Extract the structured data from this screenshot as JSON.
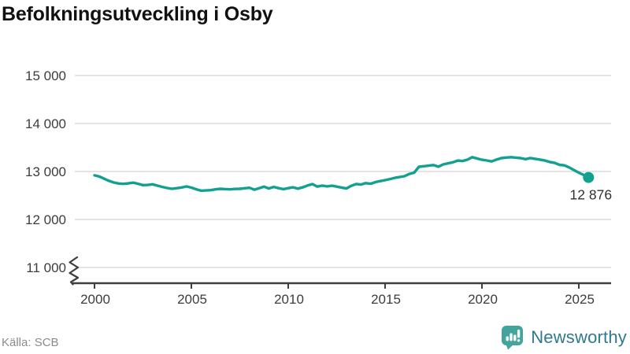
{
  "header": {
    "title": "Befolkningsutveckling i Osby"
  },
  "footer": {
    "source": "Källa: SCB",
    "brand": "Newsworthy"
  },
  "colors": {
    "line": "#12A091",
    "grid": "#E4E4E4",
    "axis": "#3E3E3E",
    "tick_text": "#3C3C3C",
    "title_text": "#111111",
    "source_text": "#8C8C8C",
    "logo_icon": "#43A49B",
    "logo_text": "#2F7A8C",
    "end_label_text": "#303030"
  },
  "chart_data": {
    "type": "line",
    "title": "Befolkningsutveckling i Osby",
    "xlabel": "",
    "ylabel": "",
    "x_range": [
      2000,
      2025.5
    ],
    "ylim": [
      11000,
      15000
    ],
    "axis_break": true,
    "grid": true,
    "legend": "none",
    "y_ticks": [
      {
        "v": 15000,
        "label": "15 000"
      },
      {
        "v": 14000,
        "label": "14 000"
      },
      {
        "v": 13000,
        "label": "13 000"
      },
      {
        "v": 12000,
        "label": "12 000"
      },
      {
        "v": 11000,
        "label": "11 000"
      }
    ],
    "x_ticks": [
      {
        "v": 2000,
        "label": "2000"
      },
      {
        "v": 2005,
        "label": "2005"
      },
      {
        "v": 2010,
        "label": "2010"
      },
      {
        "v": 2015,
        "label": "2015"
      },
      {
        "v": 2020,
        "label": "2020"
      },
      {
        "v": 2025,
        "label": "2025"
      }
    ],
    "end_label": "12 876",
    "end_value": 12876,
    "series": [
      {
        "points": [
          [
            2000.0,
            12920
          ],
          [
            2000.25,
            12895
          ],
          [
            2000.5,
            12850
          ],
          [
            2000.75,
            12805
          ],
          [
            2001.0,
            12770
          ],
          [
            2001.25,
            12750
          ],
          [
            2001.5,
            12742
          ],
          [
            2001.75,
            12752
          ],
          [
            2002.0,
            12768
          ],
          [
            2002.25,
            12745
          ],
          [
            2002.5,
            12716
          ],
          [
            2002.75,
            12720
          ],
          [
            2003.0,
            12732
          ],
          [
            2003.25,
            12705
          ],
          [
            2003.5,
            12678
          ],
          [
            2003.75,
            12655
          ],
          [
            2004.0,
            12640
          ],
          [
            2004.25,
            12652
          ],
          [
            2004.5,
            12668
          ],
          [
            2004.75,
            12688
          ],
          [
            2005.0,
            12664
          ],
          [
            2005.25,
            12630
          ],
          [
            2005.5,
            12600
          ],
          [
            2005.75,
            12605
          ],
          [
            2006.0,
            12612
          ],
          [
            2006.25,
            12628
          ],
          [
            2006.5,
            12640
          ],
          [
            2006.75,
            12632
          ],
          [
            2007.0,
            12628
          ],
          [
            2007.25,
            12636
          ],
          [
            2007.5,
            12640
          ],
          [
            2007.75,
            12650
          ],
          [
            2008.0,
            12660
          ],
          [
            2008.25,
            12622
          ],
          [
            2008.5,
            12650
          ],
          [
            2008.75,
            12684
          ],
          [
            2009.0,
            12646
          ],
          [
            2009.25,
            12678
          ],
          [
            2009.5,
            12652
          ],
          [
            2009.75,
            12632
          ],
          [
            2010.0,
            12652
          ],
          [
            2010.25,
            12670
          ],
          [
            2010.5,
            12642
          ],
          [
            2010.75,
            12670
          ],
          [
            2011.0,
            12708
          ],
          [
            2011.25,
            12738
          ],
          [
            2011.5,
            12686
          ],
          [
            2011.75,
            12706
          ],
          [
            2012.0,
            12690
          ],
          [
            2012.25,
            12704
          ],
          [
            2012.5,
            12685
          ],
          [
            2012.75,
            12666
          ],
          [
            2013.0,
            12646
          ],
          [
            2013.25,
            12700
          ],
          [
            2013.5,
            12740
          ],
          [
            2013.75,
            12728
          ],
          [
            2014.0,
            12758
          ],
          [
            2014.25,
            12745
          ],
          [
            2014.5,
            12778
          ],
          [
            2014.75,
            12800
          ],
          [
            2015.0,
            12820
          ],
          [
            2015.25,
            12842
          ],
          [
            2015.5,
            12868
          ],
          [
            2015.75,
            12886
          ],
          [
            2016.0,
            12902
          ],
          [
            2016.25,
            12950
          ],
          [
            2016.5,
            12976
          ],
          [
            2016.75,
            13098
          ],
          [
            2017.0,
            13110
          ],
          [
            2017.25,
            13122
          ],
          [
            2017.5,
            13134
          ],
          [
            2017.75,
            13100
          ],
          [
            2018.0,
            13148
          ],
          [
            2018.25,
            13170
          ],
          [
            2018.5,
            13192
          ],
          [
            2018.75,
            13228
          ],
          [
            2019.0,
            13218
          ],
          [
            2019.25,
            13246
          ],
          [
            2019.5,
            13298
          ],
          [
            2019.75,
            13270
          ],
          [
            2020.0,
            13244
          ],
          [
            2020.25,
            13230
          ],
          [
            2020.5,
            13210
          ],
          [
            2020.75,
            13248
          ],
          [
            2021.0,
            13278
          ],
          [
            2021.25,
            13290
          ],
          [
            2021.5,
            13298
          ],
          [
            2021.75,
            13288
          ],
          [
            2022.0,
            13278
          ],
          [
            2022.25,
            13258
          ],
          [
            2022.5,
            13280
          ],
          [
            2022.75,
            13264
          ],
          [
            2023.0,
            13248
          ],
          [
            2023.25,
            13228
          ],
          [
            2023.5,
            13198
          ],
          [
            2023.75,
            13178
          ],
          [
            2024.0,
            13140
          ],
          [
            2024.25,
            13128
          ],
          [
            2024.5,
            13086
          ],
          [
            2024.75,
            13030
          ],
          [
            2025.0,
            12975
          ],
          [
            2025.25,
            12928
          ],
          [
            2025.5,
            12876
          ]
        ]
      }
    ]
  }
}
